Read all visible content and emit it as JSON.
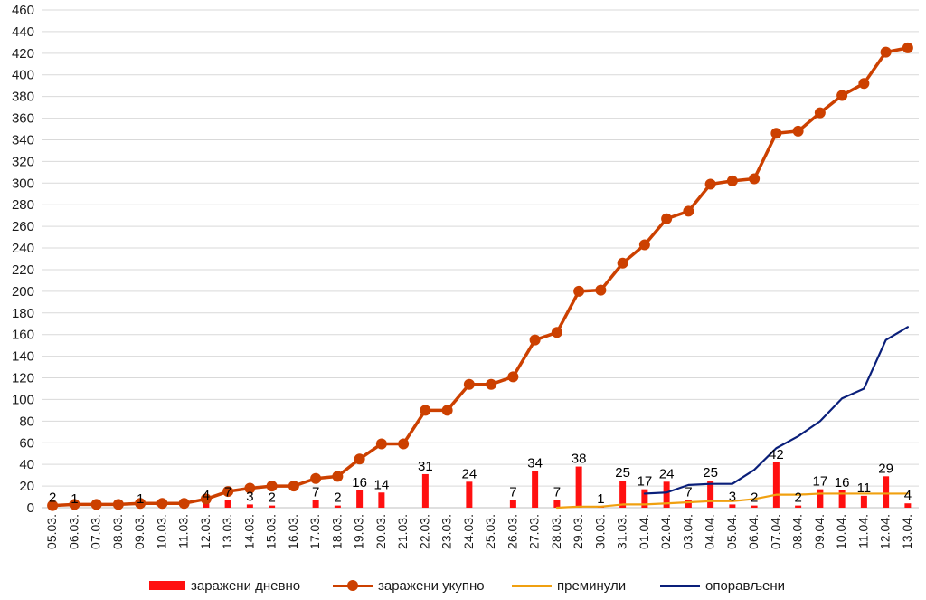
{
  "chart_data": {
    "type": "bar",
    "ylim": [
      0,
      460
    ],
    "y_ticks": [
      0,
      20,
      40,
      60,
      80,
      100,
      120,
      140,
      160,
      180,
      200,
      220,
      240,
      260,
      280,
      300,
      320,
      340,
      360,
      380,
      400,
      420,
      440,
      460
    ],
    "grid": true,
    "legend_position": "bottom",
    "categories": [
      "05.03.",
      "06.03.",
      "07.03.",
      "08.03.",
      "09.03.",
      "10.03.",
      "11.03.",
      "12.03.",
      "13.03.",
      "14.03.",
      "15.03.",
      "16.03.",
      "17.03.",
      "18.03.",
      "19.03.",
      "20.03.",
      "21.03.",
      "22.03.",
      "23.03.",
      "24.03.",
      "25.03.",
      "26.03.",
      "27.03.",
      "28.03.",
      "29.03.",
      "30.03.",
      "31.03.",
      "01.04.",
      "02.04.",
      "03.04.",
      "04.04.",
      "05.04.",
      "06.04.",
      "07.04.",
      "08.04.",
      "09.04.",
      "10.04.",
      "11.04.",
      "12.04.",
      "13.04."
    ],
    "series": [
      {
        "name": "заражени дневно",
        "type": "bar",
        "color": "#ff1010",
        "values": [
          2,
          1,
          0,
          0,
          1,
          0,
          0,
          4,
          7,
          3,
          2,
          0,
          7,
          2,
          16,
          14,
          0,
          31,
          0,
          24,
          0,
          7,
          34,
          7,
          38,
          1,
          25,
          17,
          24,
          7,
          25,
          3,
          2,
          42,
          2,
          17,
          16,
          11,
          29,
          4
        ],
        "labels": [
          "2",
          "1",
          "",
          "",
          "1",
          "",
          "",
          "4",
          "7",
          "3",
          "2",
          "",
          "7",
          "2",
          "16",
          "14",
          "",
          "31",
          "",
          "24",
          "",
          "7",
          "34",
          "7",
          "38",
          "1",
          "25",
          "17",
          "24",
          "7",
          "25",
          "3",
          "2",
          "42",
          "2",
          "17",
          "16",
          "11",
          "29",
          "4"
        ]
      },
      {
        "name": "заражени укупно",
        "type": "line-marker",
        "color": "#cc4000",
        "values": [
          2,
          3,
          3,
          3,
          4,
          4,
          4,
          8,
          15,
          18,
          20,
          20,
          27,
          29,
          45,
          59,
          59,
          90,
          90,
          114,
          114,
          121,
          155,
          162,
          200,
          201,
          226,
          243,
          267,
          274,
          299,
          302,
          304,
          346,
          348,
          365,
          381,
          392,
          421,
          425
        ]
      },
      {
        "name": "преминули",
        "type": "line",
        "color": "#f0a010",
        "values": [
          null,
          null,
          null,
          null,
          null,
          null,
          null,
          null,
          null,
          null,
          null,
          null,
          null,
          null,
          null,
          null,
          null,
          null,
          null,
          null,
          null,
          null,
          null,
          0,
          1,
          1,
          3,
          3,
          4,
          5,
          6,
          6,
          8,
          12,
          12,
          13,
          13,
          13,
          13,
          13
        ]
      },
      {
        "name": "опорављени",
        "type": "line",
        "color": "#0a1f7a",
        "values": [
          null,
          null,
          null,
          null,
          null,
          null,
          null,
          null,
          null,
          null,
          null,
          null,
          null,
          null,
          null,
          null,
          null,
          null,
          null,
          null,
          null,
          null,
          null,
          null,
          null,
          null,
          null,
          13,
          14,
          21,
          22,
          22,
          35,
          55,
          66,
          80,
          101,
          110,
          155,
          167
        ]
      }
    ]
  }
}
